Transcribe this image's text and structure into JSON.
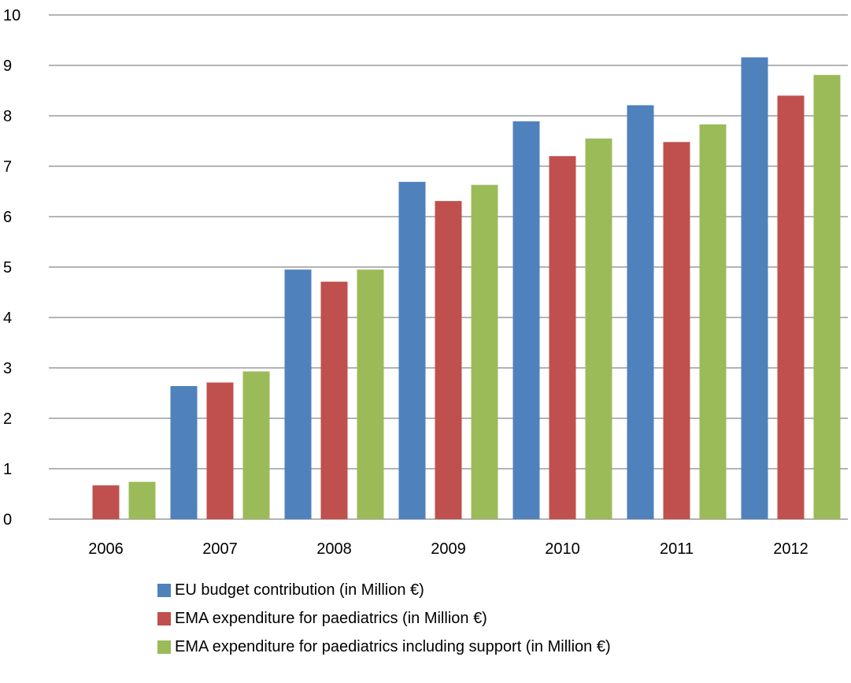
{
  "chart_data": {
    "type": "bar",
    "categories": [
      "2006",
      "2007",
      "2008",
      "2009",
      "2010",
      "2011",
      "2012"
    ],
    "series": [
      {
        "name": "EU budget contribution (in Million €)",
        "color": "#4f81bd",
        "values": [
          0,
          2.64,
          4.95,
          6.69,
          7.89,
          8.21,
          9.16
        ]
      },
      {
        "name": "EMA expenditure for paediatrics (in Million €)",
        "color": "#c0504d",
        "values": [
          0.67,
          2.71,
          4.71,
          6.31,
          7.2,
          7.48,
          8.4
        ]
      },
      {
        "name": "EMA expenditure for paediatrics including support (in Million €)",
        "color": "#9bbb59",
        "values": [
          0.74,
          2.93,
          4.95,
          6.63,
          7.55,
          7.83,
          8.81
        ]
      }
    ],
    "ylim": [
      0,
      10
    ],
    "yticks": [
      "0",
      "1",
      "2",
      "3",
      "4",
      "5",
      "6",
      "7",
      "8",
      "9",
      "10"
    ],
    "grid": true,
    "legend_position": "bottom"
  }
}
